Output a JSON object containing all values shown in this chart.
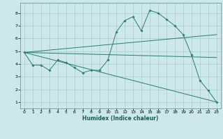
{
  "title": "",
  "xlabel": "Humidex (Indice chaleur)",
  "ylabel": "",
  "xlim": [
    -0.5,
    23.5
  ],
  "ylim": [
    0.5,
    8.8
  ],
  "xticks": [
    0,
    1,
    2,
    3,
    4,
    5,
    6,
    7,
    8,
    9,
    10,
    11,
    12,
    13,
    14,
    15,
    16,
    17,
    18,
    19,
    20,
    21,
    22,
    23
  ],
  "yticks": [
    1,
    2,
    3,
    4,
    5,
    6,
    7,
    8
  ],
  "bg_color": "#cce8e8",
  "line_color": "#2a7a6e",
  "grid_color": "#aacccc",
  "series": [
    {
      "x": [
        0,
        1,
        2,
        3,
        4,
        5,
        6,
        7,
        8,
        9,
        10,
        11,
        12,
        13,
        14,
        15,
        16,
        17,
        18,
        19,
        20,
        21,
        22,
        23
      ],
      "y": [
        4.9,
        3.9,
        3.9,
        3.5,
        4.3,
        4.1,
        3.7,
        3.3,
        3.5,
        3.5,
        4.3,
        6.5,
        7.4,
        7.7,
        6.6,
        8.2,
        8.0,
        7.5,
        7.0,
        6.3,
        4.7,
        2.7,
        1.9,
        1.0
      ],
      "marker": true
    },
    {
      "x": [
        0,
        23
      ],
      "y": [
        4.9,
        1.0
      ],
      "marker": false
    },
    {
      "x": [
        0,
        23
      ],
      "y": [
        4.9,
        4.5
      ],
      "marker": false
    },
    {
      "x": [
        0,
        23
      ],
      "y": [
        4.9,
        6.3
      ],
      "marker": false
    }
  ]
}
